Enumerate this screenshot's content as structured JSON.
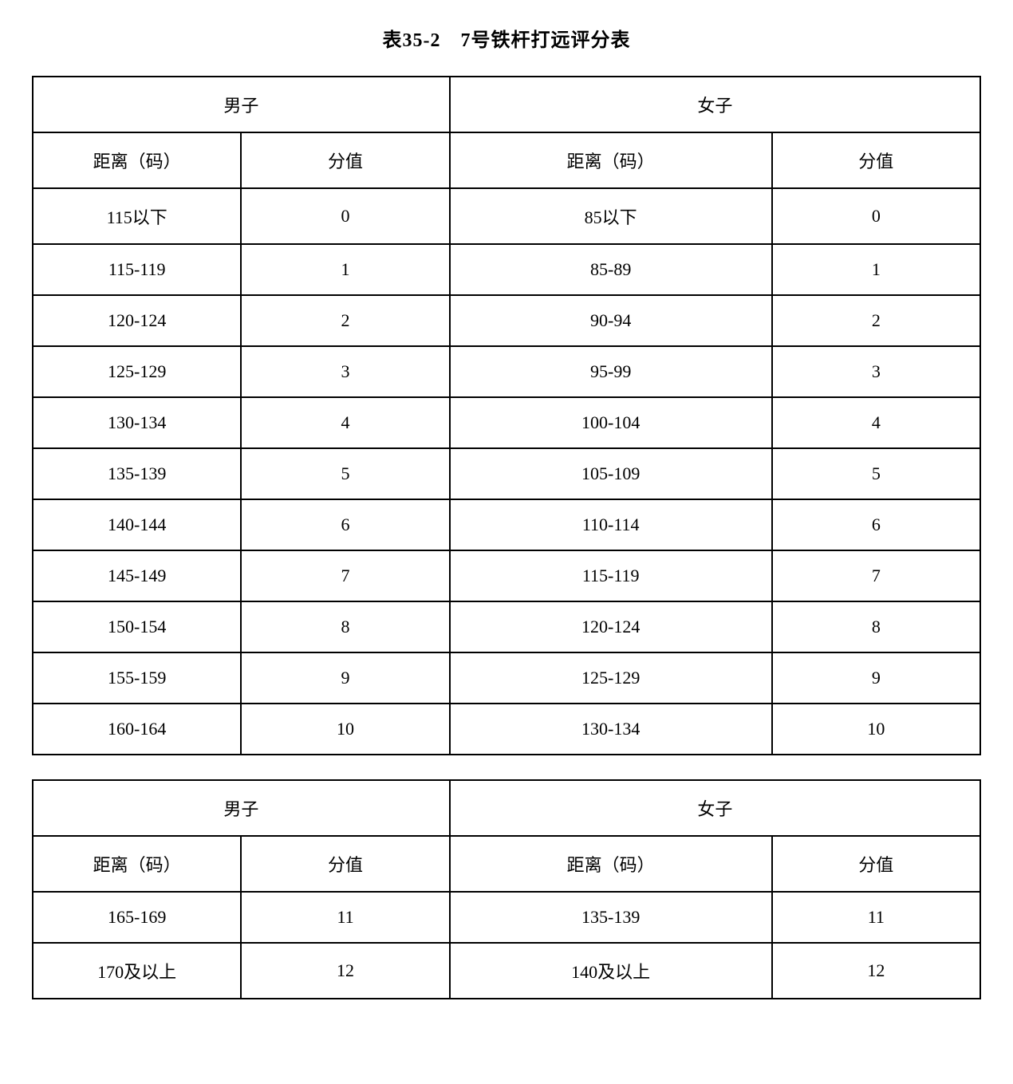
{
  "title": "表35-2　7号铁杆打远评分表",
  "headers": {
    "male": "男子",
    "female": "女子",
    "distance": "距离（码）",
    "score": "分值"
  },
  "table1": {
    "rows": [
      {
        "m_dist": "115以下",
        "m_score": "0",
        "f_dist": "85以下",
        "f_score": "0"
      },
      {
        "m_dist": "115-119",
        "m_score": "1",
        "f_dist": "85-89",
        "f_score": "1"
      },
      {
        "m_dist": "120-124",
        "m_score": "2",
        "f_dist": "90-94",
        "f_score": "2"
      },
      {
        "m_dist": "125-129",
        "m_score": "3",
        "f_dist": "95-99",
        "f_score": "3"
      },
      {
        "m_dist": "130-134",
        "m_score": "4",
        "f_dist": "100-104",
        "f_score": "4"
      },
      {
        "m_dist": "135-139",
        "m_score": "5",
        "f_dist": "105-109",
        "f_score": "5"
      },
      {
        "m_dist": "140-144",
        "m_score": "6",
        "f_dist": "110-114",
        "f_score": "6"
      },
      {
        "m_dist": "145-149",
        "m_score": "7",
        "f_dist": "115-119",
        "f_score": "7"
      },
      {
        "m_dist": "150-154",
        "m_score": "8",
        "f_dist": "120-124",
        "f_score": "8"
      },
      {
        "m_dist": "155-159",
        "m_score": "9",
        "f_dist": "125-129",
        "f_score": "9"
      },
      {
        "m_dist": "160-164",
        "m_score": "10",
        "f_dist": "130-134",
        "f_score": "10"
      }
    ]
  },
  "table2": {
    "rows": [
      {
        "m_dist": "165-169",
        "m_score": "11",
        "f_dist": "135-139",
        "f_score": "11"
      },
      {
        "m_dist": "170及以上",
        "m_score": "12",
        "f_dist": "140及以上",
        "f_score": "12"
      }
    ]
  },
  "styling": {
    "border_color": "#000000",
    "border_width": 2,
    "background_color": "#ffffff",
    "text_color": "#000000",
    "title_fontsize": 24,
    "cell_fontsize": 22,
    "font_family": "SimSun"
  }
}
